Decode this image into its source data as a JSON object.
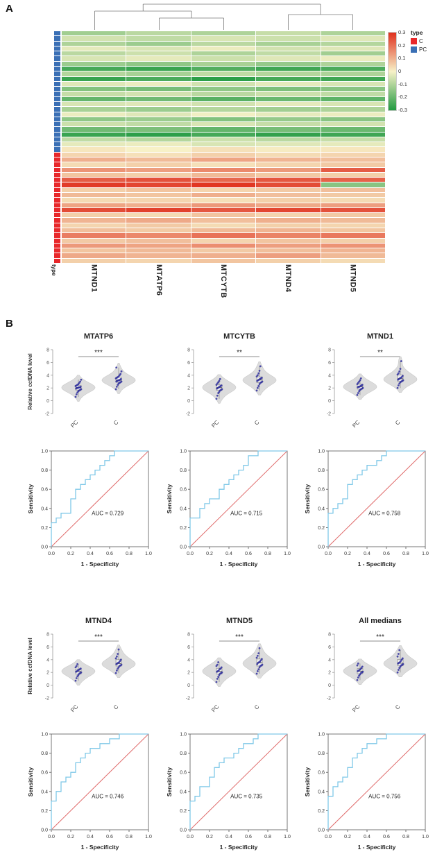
{
  "panelA": {
    "label": "A",
    "row_axis_label": "type",
    "colorscale": {
      "pos": "#e0301e",
      "mid": "#f7f1c7",
      "neg": "#219a41"
    },
    "legend": {
      "title": "type",
      "entries": [
        {
          "label": "C",
          "color": "#e8282b"
        },
        {
          "label": "PC",
          "color": "#3a6fb5"
        }
      ],
      "scale_ticks": [
        "0.3",
        "0.2",
        "0.1",
        "0",
        "-0.1",
        "-0.2",
        "-0.3"
      ]
    }
  },
  "panelB": {
    "label": "B",
    "violin": {
      "ylabel": "Relative ccfDNA level",
      "ylim": [
        -2,
        8
      ],
      "yticks": [
        -2,
        0,
        2,
        4,
        6,
        8
      ],
      "groups": [
        "PC",
        "C"
      ],
      "point_color": "#2f2f9e",
      "fill_color": "#dcdcdc"
    },
    "roc": {
      "xlabel": "1 - Specificity",
      "ylabel": "Sensitivity",
      "ticks": [
        "0.0",
        "0.2",
        "0.4",
        "0.6",
        "0.8",
        "1.0"
      ],
      "curve_color": "#7fc8e8",
      "diagonal_color": "#e06c6c"
    }
  },
  "chart_data": [
    {
      "type": "heatmap",
      "columns": [
        "MTND1",
        "MTATP6",
        "MTCYTB",
        "MTND4",
        "MTND5"
      ],
      "type_order": [
        "PC",
        "C"
      ],
      "type_counts": [
        24,
        22
      ],
      "zlim": [
        -0.35,
        0.35
      ],
      "colorbar_ticks": [
        "0.3",
        "0.2",
        "0.1",
        "0",
        "-0.1",
        "-0.2",
        "-0.3"
      ],
      "values": [
        [
          -0.14,
          -0.1,
          -0.12,
          -0.08,
          -0.12
        ],
        [
          -0.06,
          -0.09,
          -0.05,
          -0.07,
          -0.04
        ],
        [
          -0.12,
          -0.15,
          -0.1,
          -0.13,
          -0.11
        ],
        [
          -0.03,
          -0.05,
          -0.02,
          -0.06,
          -0.04
        ],
        [
          -0.1,
          -0.07,
          -0.12,
          -0.09,
          -0.14
        ],
        [
          -0.05,
          -0.03,
          -0.07,
          -0.04,
          -0.02
        ],
        [
          -0.15,
          -0.17,
          -0.13,
          -0.16,
          -0.12
        ],
        [
          -0.29,
          -0.31,
          -0.27,
          -0.3,
          -0.28
        ],
        [
          -0.11,
          -0.13,
          -0.09,
          -0.11,
          -0.12
        ],
        [
          -0.31,
          -0.28,
          -0.33,
          -0.29,
          -0.3
        ],
        [
          -0.04,
          -0.02,
          -0.06,
          -0.03,
          -0.05
        ],
        [
          -0.19,
          -0.21,
          -0.17,
          -0.2,
          -0.18
        ],
        [
          -0.08,
          -0.06,
          -0.1,
          -0.07,
          -0.09
        ],
        [
          -0.24,
          -0.22,
          -0.26,
          -0.23,
          -0.25
        ],
        [
          -0.05,
          -0.04,
          -0.06,
          -0.03,
          -0.05
        ],
        [
          -0.13,
          -0.15,
          -0.11,
          -0.14,
          -0.12
        ],
        [
          -0.02,
          -0.04,
          -0.01,
          -0.03,
          -0.02
        ],
        [
          -0.17,
          -0.15,
          -0.19,
          -0.16,
          -0.18
        ],
        [
          -0.07,
          -0.09,
          -0.05,
          -0.08,
          -0.06
        ],
        [
          -0.22,
          -0.2,
          -0.24,
          -0.21,
          -0.23
        ],
        [
          -0.31,
          -0.33,
          -0.29,
          -0.32,
          -0.3
        ],
        [
          -0.09,
          -0.11,
          -0.07,
          -0.1,
          -0.08
        ],
        [
          -0.03,
          -0.02,
          -0.05,
          -0.04,
          -0.03
        ],
        [
          0.02,
          0.0,
          0.03,
          0.01,
          0.02
        ],
        [
          0.05,
          0.03,
          0.06,
          0.04,
          0.05
        ],
        [
          0.12,
          0.1,
          0.14,
          0.11,
          0.09
        ],
        [
          0.04,
          0.06,
          0.03,
          0.05,
          0.07
        ],
        [
          0.17,
          0.15,
          0.19,
          0.16,
          0.27
        ],
        [
          0.08,
          0.06,
          0.1,
          0.07,
          0.06
        ],
        [
          0.27,
          0.29,
          0.25,
          0.28,
          0.26
        ],
        [
          0.33,
          0.31,
          0.34,
          0.3,
          -0.18
        ],
        [
          0.06,
          0.08,
          0.05,
          0.07,
          0.09
        ],
        [
          0.1,
          0.08,
          0.12,
          0.09,
          0.07
        ],
        [
          0.04,
          0.05,
          0.03,
          0.06,
          0.04
        ],
        [
          0.14,
          0.12,
          0.16,
          0.13,
          0.15
        ],
        [
          0.3,
          0.32,
          0.28,
          0.31,
          0.29
        ],
        [
          0.06,
          0.04,
          0.08,
          0.05,
          0.07
        ],
        [
          0.11,
          0.13,
          0.09,
          0.12,
          0.1
        ],
        [
          0.05,
          0.07,
          0.04,
          0.06,
          0.05
        ],
        [
          0.09,
          0.07,
          0.1,
          0.11,
          0.08
        ],
        [
          0.21,
          0.19,
          0.23,
          0.2,
          0.22
        ],
        [
          0.07,
          0.09,
          0.05,
          0.08,
          0.06
        ],
        [
          0.16,
          0.14,
          0.18,
          0.15,
          0.17
        ],
        [
          0.08,
          0.1,
          0.07,
          0.09,
          0.11
        ],
        [
          0.13,
          0.11,
          0.12,
          0.15,
          0.1
        ],
        [
          0.06,
          0.05,
          0.08,
          0.06,
          0.04
        ]
      ]
    },
    {
      "type": "violin",
      "title": "MTATP6",
      "significance": "***",
      "groups": [
        "PC",
        "C"
      ],
      "pc": [
        0.6,
        1.0,
        1.3,
        1.5,
        1.6,
        1.7,
        1.8,
        1.9,
        2.0,
        2.0,
        2.1,
        2.1,
        2.2,
        2.3,
        2.4,
        2.5,
        2.6,
        2.8,
        3.0,
        3.3
      ],
      "c": [
        1.8,
        2.2,
        2.5,
        2.7,
        2.8,
        2.9,
        3.0,
        3.0,
        3.1,
        3.2,
        3.2,
        3.3,
        3.4,
        3.5,
        3.6,
        3.7,
        3.8,
        4.0,
        4.2,
        4.6,
        5.2
      ]
    },
    {
      "type": "roc",
      "title": "MTATP6",
      "auc": 0.729,
      "auc_label": "AUC = 0.729",
      "points": [
        [
          0,
          0
        ],
        [
          0,
          0.2
        ],
        [
          0.05,
          0.25
        ],
        [
          0.1,
          0.3
        ],
        [
          0.15,
          0.35
        ],
        [
          0.2,
          0.35
        ],
        [
          0.2,
          0.45
        ],
        [
          0.25,
          0.5
        ],
        [
          0.3,
          0.6
        ],
        [
          0.35,
          0.65
        ],
        [
          0.4,
          0.7
        ],
        [
          0.45,
          0.75
        ],
        [
          0.5,
          0.8
        ],
        [
          0.55,
          0.85
        ],
        [
          0.6,
          0.9
        ],
        [
          0.65,
          0.95
        ],
        [
          0.7,
          1.0
        ],
        [
          1,
          1
        ]
      ]
    },
    {
      "type": "violin",
      "title": "MTCYTB",
      "significance": "**",
      "groups": [
        "PC",
        "C"
      ],
      "pc": [
        0.3,
        0.8,
        1.2,
        1.4,
        1.6,
        1.7,
        1.8,
        1.9,
        2.0,
        2.1,
        2.2,
        2.3,
        2.4,
        2.5,
        2.7,
        2.9,
        3.1,
        3.4
      ],
      "c": [
        1.6,
        2.0,
        2.3,
        2.6,
        2.8,
        2.9,
        3.0,
        3.1,
        3.2,
        3.3,
        3.4,
        3.5,
        3.6,
        3.8,
        4.0,
        4.3,
        4.7,
        5.4
      ]
    },
    {
      "type": "roc",
      "title": "MTCYTB",
      "auc": 0.715,
      "auc_label": "AUC = 0.715",
      "points": [
        [
          0,
          0
        ],
        [
          0,
          0.25
        ],
        [
          0.1,
          0.3
        ],
        [
          0.15,
          0.4
        ],
        [
          0.2,
          0.45
        ],
        [
          0.3,
          0.5
        ],
        [
          0.35,
          0.6
        ],
        [
          0.4,
          0.65
        ],
        [
          0.45,
          0.7
        ],
        [
          0.5,
          0.75
        ],
        [
          0.55,
          0.8
        ],
        [
          0.6,
          0.85
        ],
        [
          0.7,
          0.95
        ],
        [
          0.8,
          1
        ],
        [
          1,
          1
        ]
      ]
    },
    {
      "type": "violin",
      "title": "MTND1",
      "significance": "**",
      "groups": [
        "PC",
        "C"
      ],
      "pc": [
        0.9,
        1.2,
        1.5,
        1.7,
        1.8,
        1.9,
        2.0,
        2.1,
        2.2,
        2.2,
        2.3,
        2.4,
        2.5,
        2.6,
        2.8,
        3.0,
        3.2,
        3.5
      ],
      "c": [
        2.0,
        2.4,
        2.7,
        2.9,
        3.0,
        3.1,
        3.2,
        3.3,
        3.4,
        3.5,
        3.6,
        3.7,
        3.9,
        4.1,
        4.3,
        4.6,
        5.0,
        6.2
      ]
    },
    {
      "type": "roc",
      "title": "MTND1",
      "auc": 0.758,
      "auc_label": "AUC = 0.758",
      "points": [
        [
          0,
          0
        ],
        [
          0,
          0.3
        ],
        [
          0.05,
          0.35
        ],
        [
          0.1,
          0.4
        ],
        [
          0.15,
          0.45
        ],
        [
          0.2,
          0.5
        ],
        [
          0.2,
          0.6
        ],
        [
          0.25,
          0.65
        ],
        [
          0.3,
          0.7
        ],
        [
          0.35,
          0.75
        ],
        [
          0.4,
          0.8
        ],
        [
          0.5,
          0.85
        ],
        [
          0.55,
          0.9
        ],
        [
          0.6,
          0.95
        ],
        [
          0.65,
          1
        ],
        [
          1,
          1
        ]
      ]
    },
    {
      "type": "violin",
      "title": "MTND4",
      "significance": "***",
      "groups": [
        "PC",
        "C"
      ],
      "pc": [
        0.7,
        1.1,
        1.4,
        1.6,
        1.8,
        1.9,
        2.0,
        2.1,
        2.2,
        2.3,
        2.4,
        2.5,
        2.6,
        2.8,
        3.0,
        3.3
      ],
      "c": [
        1.9,
        2.3,
        2.6,
        2.8,
        3.0,
        3.1,
        3.2,
        3.3,
        3.4,
        3.5,
        3.6,
        3.8,
        4.0,
        4.2,
        4.5,
        4.9,
        5.6
      ]
    },
    {
      "type": "roc",
      "title": "MTND4",
      "auc": 0.746,
      "auc_label": "AUC = 0.746",
      "points": [
        [
          0,
          0
        ],
        [
          0,
          0.2
        ],
        [
          0.05,
          0.3
        ],
        [
          0.1,
          0.4
        ],
        [
          0.15,
          0.5
        ],
        [
          0.2,
          0.55
        ],
        [
          0.25,
          0.6
        ],
        [
          0.3,
          0.7
        ],
        [
          0.35,
          0.75
        ],
        [
          0.4,
          0.8
        ],
        [
          0.5,
          0.85
        ],
        [
          0.6,
          0.9
        ],
        [
          0.7,
          0.95
        ],
        [
          0.8,
          1
        ],
        [
          1,
          1
        ]
      ]
    },
    {
      "type": "violin",
      "title": "MTND5",
      "significance": "***",
      "groups": [
        "PC",
        "C"
      ],
      "pc": [
        0.5,
        1.0,
        1.3,
        1.6,
        1.8,
        1.9,
        2.0,
        2.1,
        2.2,
        2.3,
        2.5,
        2.6,
        2.8,
        3.0,
        3.2,
        3.6
      ],
      "c": [
        1.8,
        2.2,
        2.5,
        2.8,
        3.0,
        3.1,
        3.2,
        3.3,
        3.5,
        3.6,
        3.7,
        3.9,
        4.1,
        4.3,
        4.6,
        5.0,
        5.8
      ]
    },
    {
      "type": "roc",
      "title": "MTND5",
      "auc": 0.735,
      "auc_label": "AUC = 0.735",
      "points": [
        [
          0,
          0
        ],
        [
          0,
          0.25
        ],
        [
          0.05,
          0.3
        ],
        [
          0.1,
          0.35
        ],
        [
          0.2,
          0.45
        ],
        [
          0.25,
          0.55
        ],
        [
          0.3,
          0.65
        ],
        [
          0.35,
          0.7
        ],
        [
          0.45,
          0.75
        ],
        [
          0.5,
          0.8
        ],
        [
          0.55,
          0.85
        ],
        [
          0.65,
          0.9
        ],
        [
          0.7,
          0.95
        ],
        [
          0.85,
          1
        ],
        [
          1,
          1
        ]
      ]
    },
    {
      "type": "violin",
      "title": "All medians",
      "significance": "***",
      "groups": [
        "PC",
        "C"
      ],
      "pc": [
        0.8,
        1.2,
        1.5,
        1.7,
        1.9,
        2.0,
        2.1,
        2.2,
        2.3,
        2.4,
        2.5,
        2.7,
        2.9,
        3.1,
        3.4
      ],
      "c": [
        2.0,
        2.4,
        2.7,
        2.9,
        3.1,
        3.2,
        3.3,
        3.4,
        3.5,
        3.6,
        3.8,
        4.0,
        4.2,
        4.5,
        4.9,
        5.5
      ]
    },
    {
      "type": "roc",
      "title": "All medians",
      "auc": 0.756,
      "auc_label": "AUC = 0.756",
      "points": [
        [
          0,
          0
        ],
        [
          0,
          0.25
        ],
        [
          0.05,
          0.35
        ],
        [
          0.1,
          0.45
        ],
        [
          0.15,
          0.5
        ],
        [
          0.2,
          0.55
        ],
        [
          0.25,
          0.65
        ],
        [
          0.3,
          0.75
        ],
        [
          0.35,
          0.8
        ],
        [
          0.4,
          0.85
        ],
        [
          0.5,
          0.9
        ],
        [
          0.6,
          0.95
        ],
        [
          0.7,
          1
        ],
        [
          1,
          1
        ]
      ]
    }
  ]
}
